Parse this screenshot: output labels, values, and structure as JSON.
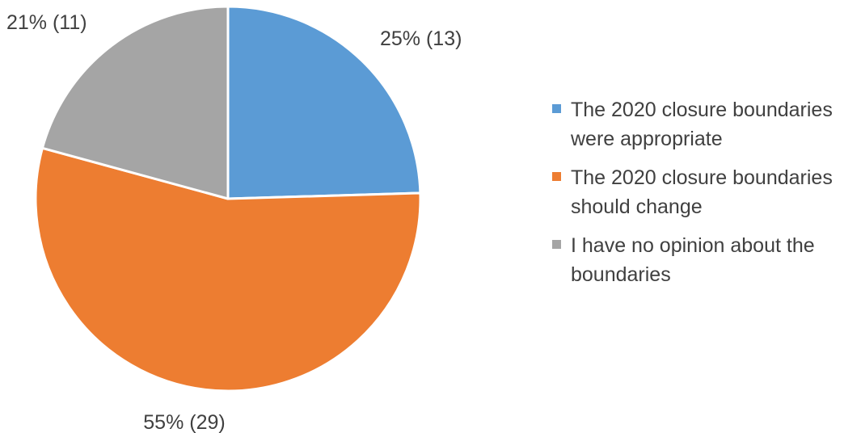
{
  "chart_data": {
    "type": "pie",
    "title": "",
    "start_angle_deg": 0,
    "direction": "clockwise",
    "series": [
      {
        "values": [
          13,
          29,
          11
        ],
        "percent_labels": [
          "25% (13)",
          "55% (29)",
          "21% (11)"
        ]
      }
    ],
    "categories": [
      "The 2020 closure boundaries were appropriate",
      "The 2020 closure boundaries should change",
      "I have no opinion about the boundaries"
    ],
    "colors": [
      "#5b9bd5",
      "#ed7d31",
      "#a5a5a5"
    ],
    "legend_position": "right"
  },
  "legend": {
    "items": [
      {
        "label": "The 2020 closure boundaries were appropriate",
        "color": "#5b9bd5"
      },
      {
        "label": "The 2020 closure boundaries should change",
        "color": "#ed7d31"
      },
      {
        "label": "I have no opinion about the boundaries",
        "color": "#a5a5a5"
      }
    ]
  }
}
